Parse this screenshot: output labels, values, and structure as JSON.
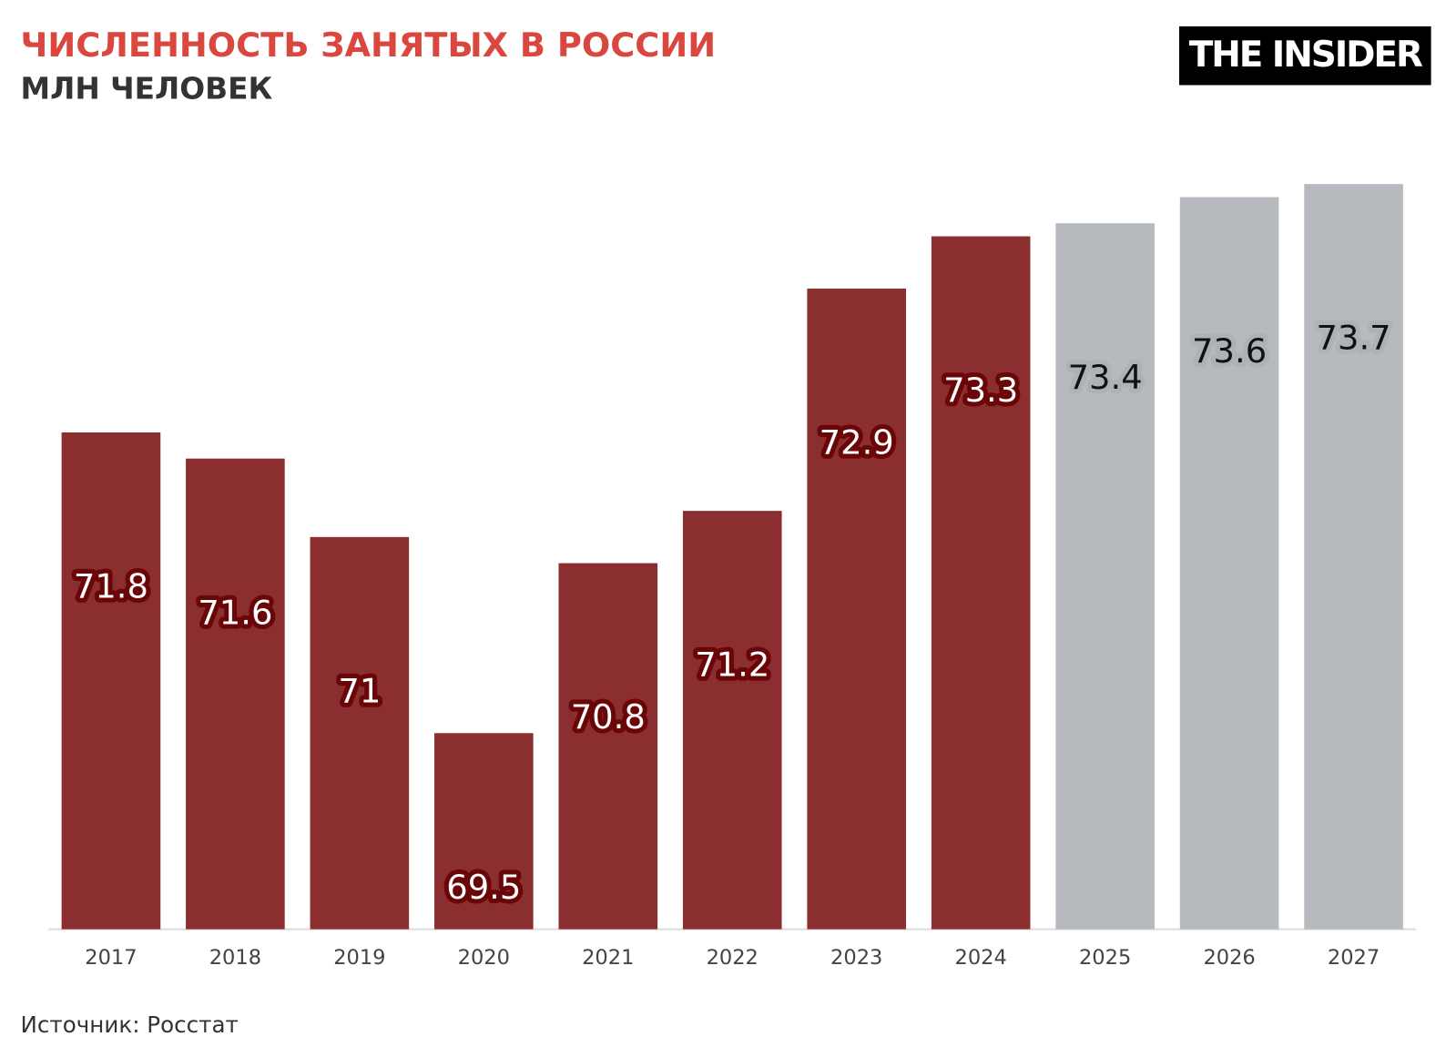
{
  "chart_data": {
    "type": "bar",
    "title": "ЧИСЛЕННОСТЬ ЗАНЯТЫХ В РОССИИ",
    "subtitle": "МЛН ЧЕЛОВЕК",
    "logo": "THE INSIDER",
    "source": "Источник: Росстат",
    "categories": [
      "2017",
      "2018",
      "2019",
      "2020",
      "2021",
      "2022",
      "2023",
      "2024",
      "2025",
      "2026",
      "2027"
    ],
    "values": [
      71.8,
      71.6,
      71,
      69.5,
      70.8,
      71.2,
      72.9,
      73.3,
      73.4,
      73.6,
      73.7
    ],
    "colors": [
      "#8b2e2f",
      "#8b2e2f",
      "#8b2e2f",
      "#8b2e2f",
      "#8b2e2f",
      "#8b2e2f",
      "#8b2e2f",
      "#8b2e2f",
      "#b6b9be",
      "#b6b9be",
      "#b6b9be"
    ],
    "ylim": [
      68,
      74
    ]
  }
}
